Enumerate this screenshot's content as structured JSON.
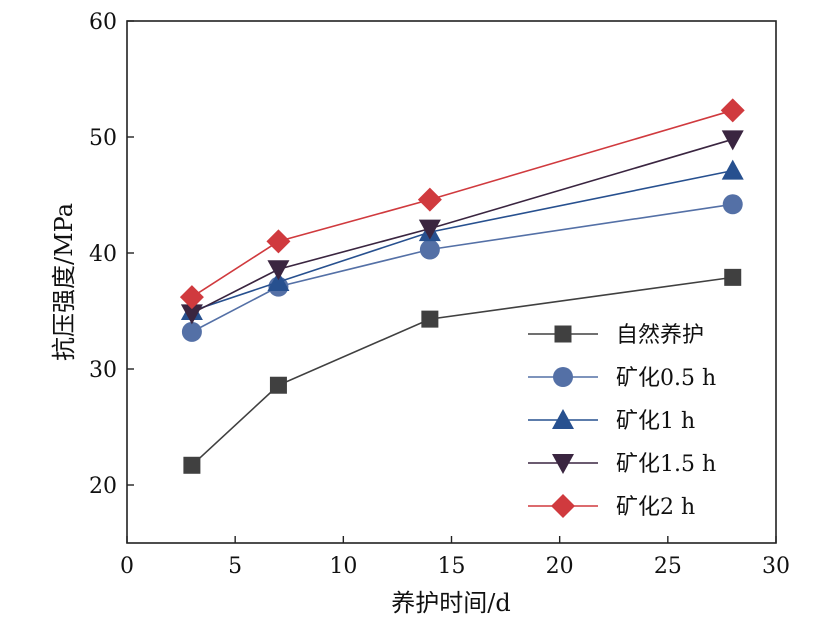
{
  "chart_data": {
    "type": "line",
    "xlabel": "养护时间/d",
    "ylabel": "抗压强度/MPa",
    "xlim": [
      0,
      30
    ],
    "ylim": [
      15,
      60
    ],
    "xticks": [
      "0",
      "5",
      "10",
      "15",
      "20",
      "25",
      "30"
    ],
    "yticks": [
      "20",
      "30",
      "40",
      "50",
      "60"
    ],
    "grid": false,
    "legend_position": "lower-right",
    "x": [
      3,
      7,
      14,
      28
    ],
    "series": [
      {
        "name": "自然养护",
        "values": [
          21.7,
          28.6,
          34.3,
          37.9
        ],
        "color": "#404040",
        "marker": "square"
      },
      {
        "name": "矿化0.5 h",
        "values": [
          33.2,
          37.1,
          40.3,
          44.2
        ],
        "color": "#5470a6",
        "marker": "circle"
      },
      {
        "name": "矿化1 h",
        "values": [
          35.0,
          37.5,
          41.8,
          47.1
        ],
        "color": "#27508f",
        "marker": "triangle-up"
      },
      {
        "name": "矿化1.5 h",
        "values": [
          34.8,
          38.6,
          42.1,
          49.8
        ],
        "color": "#3a2540",
        "marker": "triangle-down"
      },
      {
        "name": "矿化2 h",
        "values": [
          36.2,
          41.0,
          44.6,
          52.3
        ],
        "color": "#d03a3e",
        "marker": "diamond"
      }
    ]
  }
}
